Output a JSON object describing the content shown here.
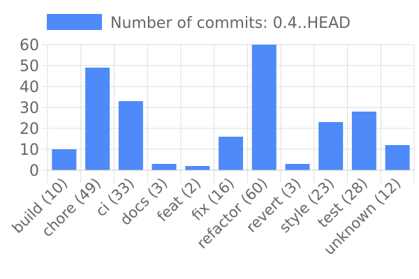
{
  "chart_data": {
    "type": "bar",
    "categories": [
      "build (10)",
      "chore (49)",
      "ci (33)",
      "docs (3)",
      "feat (2)",
      "fix (16)",
      "refactor (60)",
      "revert (3)",
      "style (23)",
      "test (28)",
      "unknown (12)"
    ],
    "series": [
      {
        "name": "Number of commits: 0.4..HEAD",
        "values": [
          10,
          49,
          33,
          3,
          2,
          16,
          60,
          3,
          23,
          28,
          12
        ],
        "color": "#4e8af9"
      }
    ],
    "title": "",
    "xlabel": "",
    "ylabel": "",
    "ylim": [
      0,
      60
    ],
    "yticks": [
      0,
      10,
      20,
      30,
      40,
      50,
      60
    ],
    "grid": true,
    "legend_position": "top"
  }
}
